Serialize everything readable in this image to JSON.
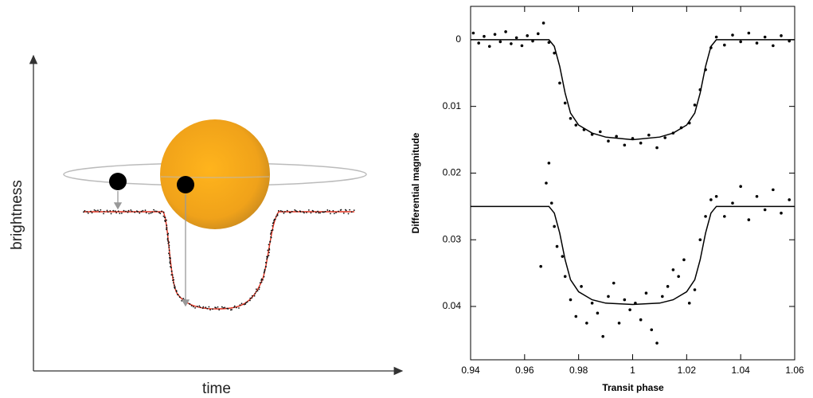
{
  "chart_data": [
    {
      "type": "schematic",
      "xlabel": "time",
      "ylabel": "brightness"
    },
    {
      "type": "scatter",
      "xlabel": "Transit phase",
      "ylabel": "Differential magnitude",
      "xlim": [
        0.94,
        1.06
      ],
      "xticks": [
        0.94,
        0.96,
        0.98,
        1,
        1.02,
        1.04,
        1.06
      ],
      "ylim": [
        0.048,
        -0.005
      ],
      "yticks": [
        0,
        0.01,
        0.02,
        0.03,
        0.04
      ],
      "series": [
        {
          "style": "markers",
          "color": "#000000",
          "x": [
            0.941,
            0.943,
            0.945,
            0.947,
            0.949,
            0.951,
            0.953,
            0.955,
            0.957,
            0.959,
            0.961,
            0.963,
            0.965,
            0.967,
            0.969,
            0.971,
            0.973,
            0.975,
            0.977,
            0.979,
            0.982,
            0.985,
            0.988,
            0.991,
            0.994,
            0.997,
            1.0,
            1.003,
            1.006,
            1.009,
            1.012,
            1.015,
            1.018,
            1.021,
            1.023,
            1.025,
            1.027,
            1.029,
            1.031,
            1.034,
            1.037,
            1.04,
            1.043,
            1.046,
            1.049,
            1.052,
            1.055,
            1.058
          ],
          "values": [
            -0.001,
            0.0005,
            -0.0005,
            0.001,
            -0.0008,
            0.0003,
            -0.0012,
            0.0006,
            -0.0003,
            0.0009,
            -0.0006,
            0.0002,
            -0.0009,
            -0.0025,
            0.0004,
            0.002,
            0.0065,
            0.0095,
            0.0118,
            0.0128,
            0.0135,
            0.0142,
            0.0138,
            0.0152,
            0.0145,
            0.0158,
            0.0148,
            0.0155,
            0.0143,
            0.0162,
            0.0147,
            0.014,
            0.0132,
            0.0125,
            0.0098,
            0.0075,
            0.0045,
            0.0012,
            -0.0004,
            0.0008,
            -0.0007,
            0.0003,
            -0.001,
            0.0005,
            -0.0004,
            0.0009,
            -0.0006,
            0.0002
          ]
        },
        {
          "style": "markers",
          "color": "#000000",
          "x": [
            0.966,
            0.968,
            0.969,
            0.97,
            0.971,
            0.972,
            0.974,
            0.975,
            0.977,
            0.979,
            0.981,
            0.983,
            0.985,
            0.987,
            0.989,
            0.991,
            0.993,
            0.995,
            0.997,
            0.999,
            1.001,
            1.003,
            1.005,
            1.007,
            1.009,
            1.011,
            1.013,
            1.015,
            1.017,
            1.019,
            1.021,
            1.023,
            1.025,
            1.027,
            1.029,
            1.031,
            1.034,
            1.037,
            1.04,
            1.043,
            1.046,
            1.049,
            1.052,
            1.055,
            1.058
          ],
          "values": [
            0.034,
            0.0215,
            0.0185,
            0.0245,
            0.028,
            0.031,
            0.0325,
            0.0355,
            0.039,
            0.0415,
            0.037,
            0.0425,
            0.0395,
            0.041,
            0.0445,
            0.0385,
            0.0365,
            0.0425,
            0.039,
            0.0405,
            0.0395,
            0.042,
            0.038,
            0.0435,
            0.0455,
            0.0385,
            0.037,
            0.0345,
            0.0355,
            0.033,
            0.0395,
            0.0375,
            0.03,
            0.0265,
            0.024,
            0.0235,
            0.0265,
            0.0245,
            0.022,
            0.027,
            0.0235,
            0.0255,
            0.0225,
            0.026,
            0.024
          ]
        },
        {
          "style": "line",
          "color": "#000000",
          "x": [
            0.94,
            0.969,
            0.971,
            0.973,
            0.975,
            0.977,
            0.98,
            0.985,
            0.99,
            1.0,
            1.01,
            1.015,
            1.02,
            1.023,
            1.025,
            1.027,
            1.029,
            1.031,
            1.06
          ],
          "values": [
            0,
            0,
            0.001,
            0.004,
            0.008,
            0.011,
            0.0128,
            0.014,
            0.0146,
            0.015,
            0.0146,
            0.014,
            0.0128,
            0.011,
            0.008,
            0.004,
            0.001,
            0,
            0
          ]
        },
        {
          "style": "line",
          "color": "#000000",
          "x": [
            0.94,
            0.969,
            0.971,
            0.973,
            0.975,
            0.977,
            0.98,
            0.985,
            0.99,
            1.0,
            1.01,
            1.015,
            1.02,
            1.023,
            1.025,
            1.027,
            1.029,
            1.031,
            1.06
          ],
          "values": [
            0.025,
            0.025,
            0.026,
            0.029,
            0.033,
            0.036,
            0.0378,
            0.039,
            0.0395,
            0.0397,
            0.0395,
            0.039,
            0.0378,
            0.036,
            0.033,
            0.029,
            0.026,
            0.025,
            0.025
          ]
        }
      ]
    }
  ]
}
